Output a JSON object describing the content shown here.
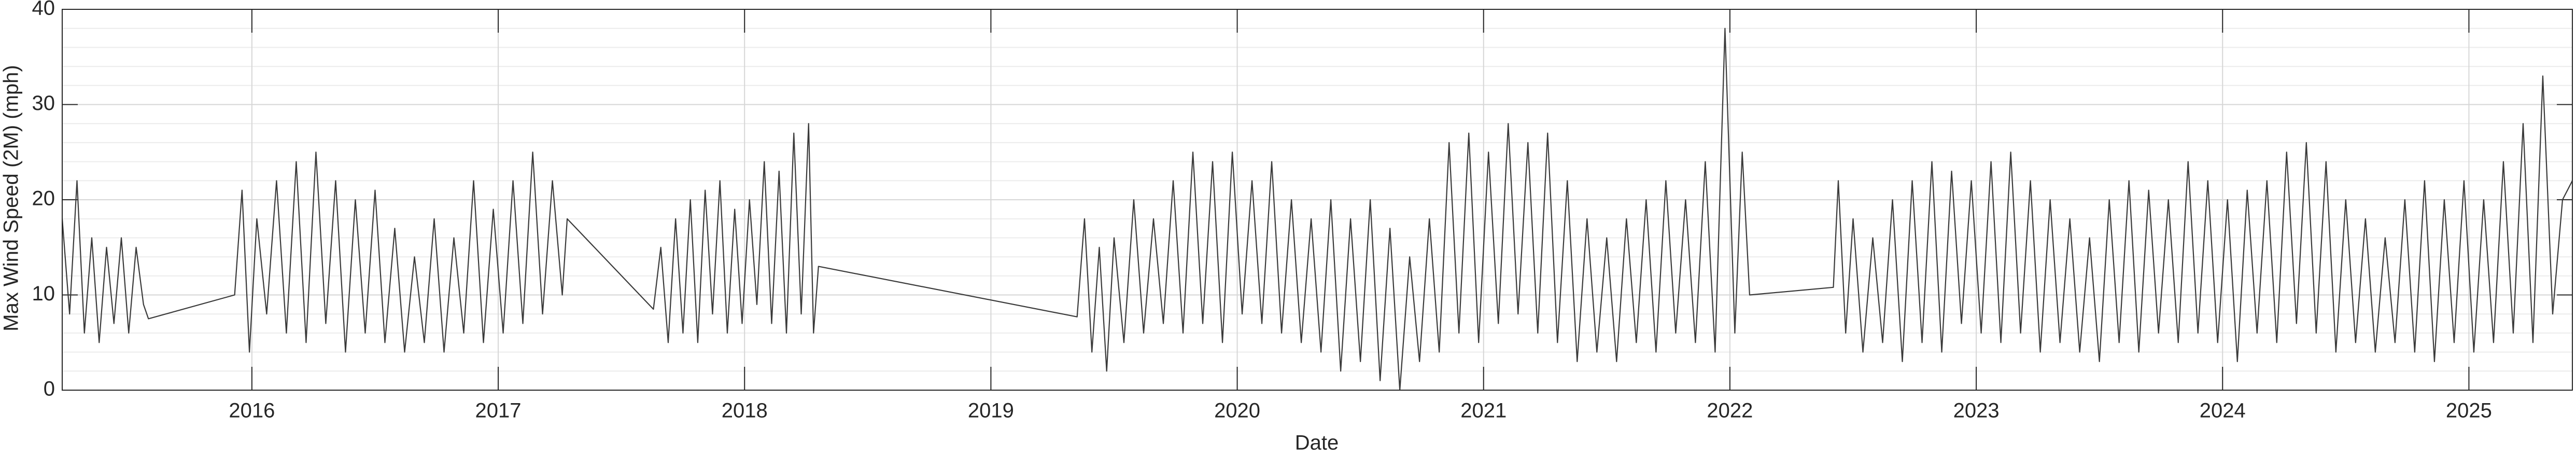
{
  "chart_data": {
    "type": "line",
    "x_label": "Date",
    "y_label": "Max Wind Speed (2M) (mph)",
    "xlim": [
      2015.23,
      2025.42
    ],
    "xticks": [
      2016,
      2017,
      2018,
      2019,
      2020,
      2021,
      2022,
      2023,
      2024,
      2025
    ],
    "ylim": [
      0,
      40
    ],
    "yticks": [
      0,
      10,
      20,
      30,
      40
    ],
    "grid": true,
    "minor_grid": true,
    "series": [
      {
        "color": "#3a3a3a",
        "x": [
          2015.23,
          2015.26,
          2015.29,
          2015.32,
          2015.35,
          2015.38,
          2015.41,
          2015.44,
          2015.47,
          2015.5,
          2015.53,
          2015.56,
          2015.58,
          2015.93,
          2015.96,
          2015.99,
          2016.02,
          2016.06,
          2016.1,
          2016.14,
          2016.18,
          2016.22,
          2016.26,
          2016.3,
          2016.34,
          2016.38,
          2016.42,
          2016.46,
          2016.5,
          2016.54,
          2016.58,
          2016.62,
          2016.66,
          2016.7,
          2016.74,
          2016.78,
          2016.82,
          2016.86,
          2016.9,
          2016.94,
          2016.98,
          2017.02,
          2017.06,
          2017.1,
          2017.14,
          2017.18,
          2017.22,
          2017.26,
          2017.28,
          2017.63,
          2017.66,
          2017.69,
          2017.72,
          2017.75,
          2017.78,
          2017.81,
          2017.84,
          2017.87,
          2017.9,
          2017.93,
          2017.96,
          2017.99,
          2018.02,
          2018.05,
          2018.08,
          2018.11,
          2018.14,
          2018.17,
          2018.2,
          2018.23,
          2018.26,
          2018.28,
          2018.3,
          2019.35,
          2019.38,
          2019.41,
          2019.44,
          2019.47,
          2019.5,
          2019.54,
          2019.58,
          2019.62,
          2019.66,
          2019.7,
          2019.74,
          2019.78,
          2019.82,
          2019.86,
          2019.9,
          2019.94,
          2019.98,
          2020.02,
          2020.06,
          2020.1,
          2020.14,
          2020.18,
          2020.22,
          2020.26,
          2020.3,
          2020.34,
          2020.38,
          2020.42,
          2020.46,
          2020.5,
          2020.54,
          2020.58,
          2020.62,
          2020.66,
          2020.7,
          2020.74,
          2020.78,
          2020.82,
          2020.86,
          2020.9,
          2020.94,
          2020.98,
          2021.02,
          2021.06,
          2021.1,
          2021.14,
          2021.18,
          2021.22,
          2021.26,
          2021.3,
          2021.34,
          2021.38,
          2021.42,
          2021.46,
          2021.5,
          2021.54,
          2021.58,
          2021.62,
          2021.66,
          2021.7,
          2021.74,
          2021.78,
          2021.82,
          2021.86,
          2021.9,
          2021.94,
          2021.98,
          2022.02,
          2022.05,
          2022.08,
          2022.42,
          2022.44,
          2022.47,
          2022.5,
          2022.54,
          2022.58,
          2022.62,
          2022.66,
          2022.7,
          2022.74,
          2022.78,
          2022.82,
          2022.86,
          2022.9,
          2022.94,
          2022.98,
          2023.02,
          2023.06,
          2023.1,
          2023.14,
          2023.18,
          2023.22,
          2023.26,
          2023.3,
          2023.34,
          2023.38,
          2023.42,
          2023.46,
          2023.5,
          2023.54,
          2023.58,
          2023.62,
          2023.66,
          2023.7,
          2023.74,
          2023.78,
          2023.82,
          2023.86,
          2023.9,
          2023.94,
          2023.98,
          2024.02,
          2024.06,
          2024.1,
          2024.14,
          2024.18,
          2024.22,
          2024.26,
          2024.3,
          2024.34,
          2024.38,
          2024.42,
          2024.46,
          2024.5,
          2024.54,
          2024.58,
          2024.62,
          2024.66,
          2024.7,
          2024.74,
          2024.78,
          2024.82,
          2024.86,
          2024.9,
          2024.94,
          2024.98,
          2025.02,
          2025.06,
          2025.1,
          2025.14,
          2025.18,
          2025.22,
          2025.26,
          2025.3,
          2025.34,
          2025.38,
          2025.42
        ],
        "values": [
          18,
          8,
          22,
          6,
          16,
          5,
          15,
          7,
          16,
          6,
          15,
          9,
          7.5,
          10,
          21,
          4,
          18,
          8,
          22,
          6,
          24,
          5,
          25,
          7,
          22,
          4,
          20,
          6,
          21,
          5,
          17,
          4,
          14,
          5,
          18,
          4,
          16,
          6,
          22,
          5,
          19,
          6,
          22,
          7,
          25,
          8,
          22,
          10,
          18,
          8.5,
          15,
          5,
          18,
          6,
          20,
          5,
          21,
          8,
          22,
          6,
          19,
          7,
          20,
          9,
          24,
          7,
          23,
          6,
          27,
          8,
          28,
          6,
          13,
          7.7,
          18,
          4,
          15,
          2,
          16,
          5,
          20,
          6,
          18,
          7,
          22,
          6,
          25,
          7,
          24,
          5,
          25,
          8,
          22,
          7,
          24,
          6,
          20,
          5,
          18,
          4,
          20,
          2,
          18,
          3,
          20,
          1,
          17,
          0,
          14,
          3,
          18,
          4,
          26,
          6,
          27,
          5,
          25,
          7,
          28,
          8,
          26,
          6,
          27,
          5,
          22,
          3,
          18,
          4,
          16,
          3,
          18,
          5,
          20,
          4,
          22,
          6,
          20,
          5,
          24,
          4,
          38,
          6,
          25,
          10,
          10.8,
          22,
          6,
          18,
          4,
          16,
          5,
          20,
          3,
          22,
          5,
          24,
          4,
          23,
          7,
          22,
          6,
          24,
          5,
          25,
          6,
          22,
          4,
          20,
          5,
          18,
          4,
          16,
          3,
          20,
          5,
          22,
          4,
          21,
          6,
          20,
          5,
          24,
          6,
          22,
          5,
          20,
          3,
          21,
          6,
          22,
          5,
          25,
          7,
          26,
          6,
          24,
          4,
          20,
          5,
          18,
          4,
          16,
          5,
          20,
          4,
          22,
          3,
          20,
          5,
          22,
          4,
          20,
          5,
          24,
          6,
          28,
          5,
          33,
          8,
          20,
          22
        ]
      }
    ]
  }
}
